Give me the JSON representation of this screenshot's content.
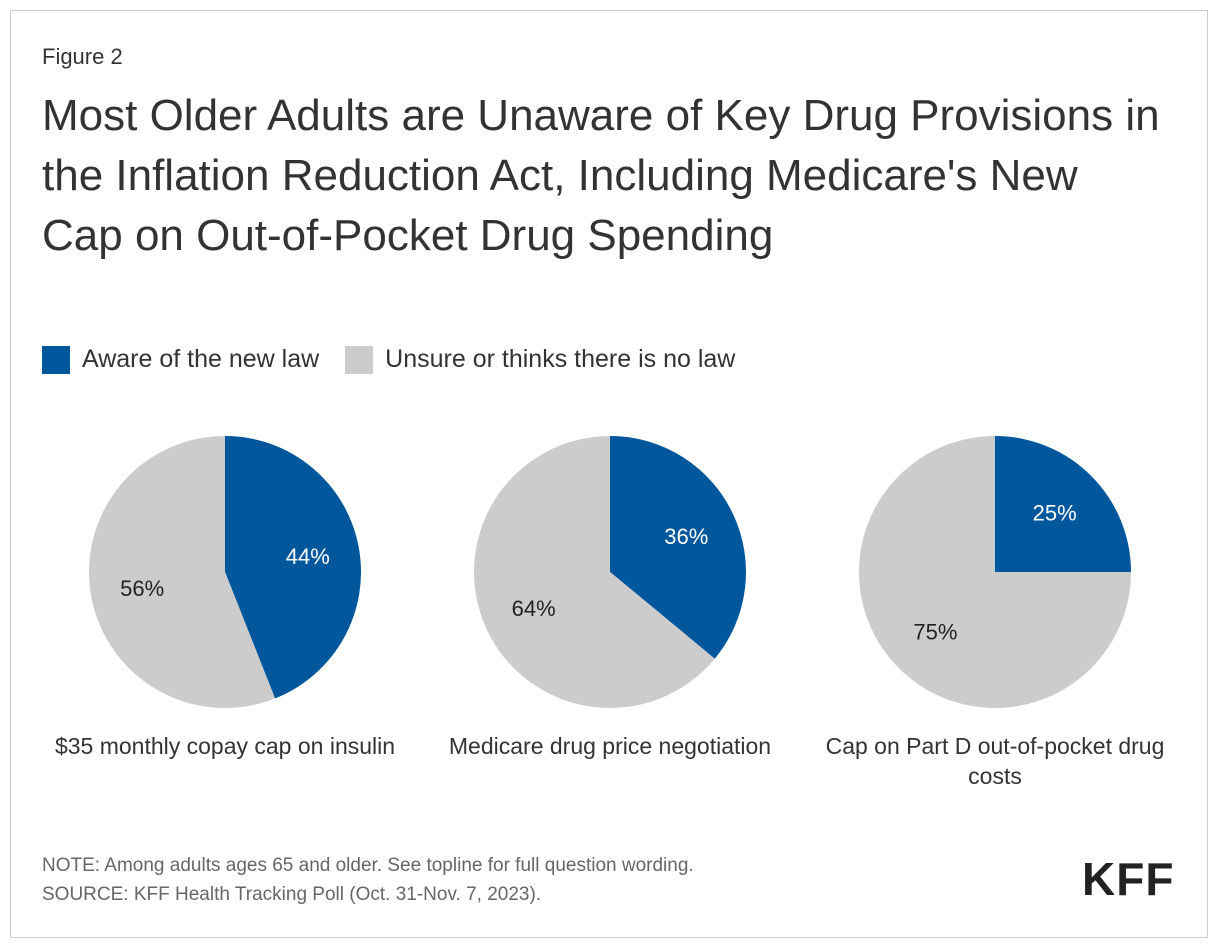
{
  "figure_label": "Figure 2",
  "title": "Most Older Adults are Unaware of Key Drug Provisions in the Inflation Reduction Act, Including Medicare's New Cap on Out-of-Pocket Drug Spending",
  "legend": [
    {
      "label": "Aware of the new law",
      "color": "#00579c"
    },
    {
      "label": "Unsure or thinks there is no law",
      "color": "#cccccc"
    }
  ],
  "chart_data": [
    {
      "type": "pie",
      "caption": "$35 monthly copay cap on insulin",
      "slices": [
        {
          "name": "Aware of the new law",
          "value": 44,
          "label": "44%",
          "color": "#00579c"
        },
        {
          "name": "Unsure or thinks there is no law",
          "value": 56,
          "label": "56%",
          "color": "#cccccc"
        }
      ]
    },
    {
      "type": "pie",
      "caption": "Medicare drug price negotiation",
      "slices": [
        {
          "name": "Aware of the new law",
          "value": 36,
          "label": "36%",
          "color": "#00579c"
        },
        {
          "name": "Unsure or thinks there is no law",
          "value": 64,
          "label": "64%",
          "color": "#cccccc"
        }
      ]
    },
    {
      "type": "pie",
      "caption": "Cap on Part D out-of-pocket drug costs",
      "slices": [
        {
          "name": "Aware of the new law",
          "value": 25,
          "label": "25%",
          "color": "#00579c"
        },
        {
          "name": "Unsure or thinks there is no law",
          "value": 75,
          "label": "75%",
          "color": "#cccccc"
        }
      ]
    }
  ],
  "note": "NOTE: Among adults ages 65 and older. See topline for full question wording.",
  "source": "SOURCE: KFF Health Tracking Poll (Oct. 31-Nov. 7, 2023).",
  "logo": "KFF"
}
